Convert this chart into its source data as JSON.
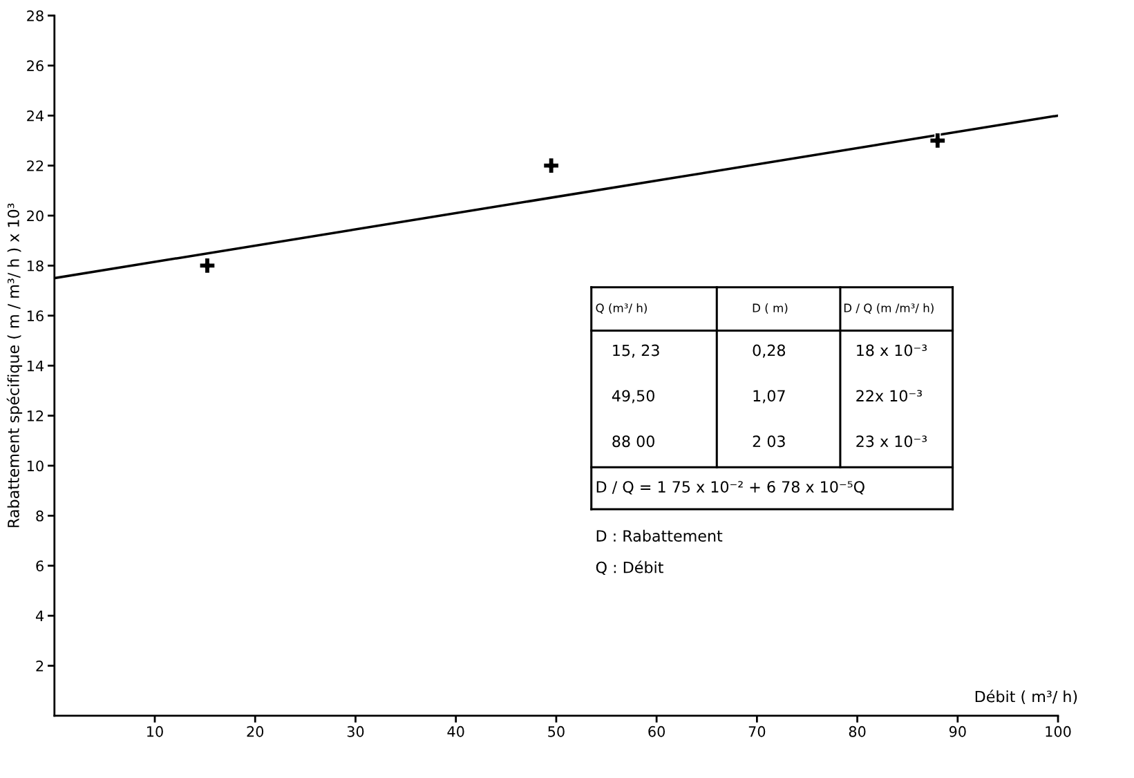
{
  "chart_data": {
    "type": "scatter",
    "xlabel": "Débit ( m³/ h)",
    "ylabel": "Rabattement spécifique ( m / m³/ h ) x 10³",
    "xlim": [
      0,
      100
    ],
    "xticks": [
      10,
      20,
      30,
      40,
      50,
      60,
      70,
      80,
      90,
      100
    ],
    "ylim": [
      0,
      28
    ],
    "yticks": [
      2,
      4,
      6,
      8,
      10,
      12,
      14,
      16,
      18,
      20,
      22,
      24,
      26,
      28
    ],
    "grid": false,
    "legend": false,
    "series": [
      {
        "x": [
          15.23,
          49.5,
          88.0
        ],
        "values": [
          18,
          22,
          23
        ],
        "color": "#000000",
        "marker": "cross"
      },
      {
        "type": "line",
        "x": [
          0,
          100
        ],
        "values": [
          17.5,
          24.0
        ],
        "color": "#000000",
        "marker": "none",
        "line_style": "solid"
      }
    ],
    "annotations": [
      "Q (m³/ h)",
      "D ( m)",
      "D / Q (m /m³/ h)",
      "15, 23",
      "0,28",
      "18 x 10⁻³",
      "49,50",
      "1,07",
      "22x 10⁻³",
      "88 00",
      "2 03",
      "23 x 10⁻³",
      "D / Q = 1 75 x 10⁻² + 6 78 x 10⁻⁵Q",
      "D : Rabattement",
      "Q : Débit"
    ]
  }
}
